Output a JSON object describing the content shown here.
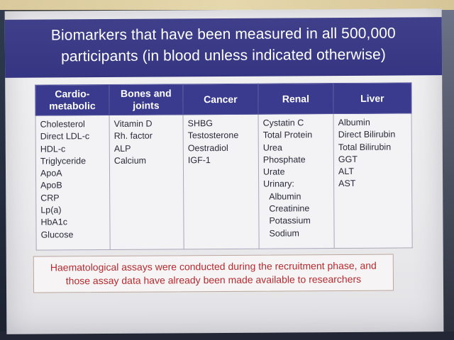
{
  "slide": {
    "title": "Biomarkers that have been measured in all 500,000 participants (in blood unless indicated otherwise)",
    "columns": [
      {
        "header": "Cardio-\nmetabolic",
        "items": [
          "Cholesterol",
          "Direct LDL-c",
          "HDL-c",
          "Triglyceride",
          "ApoA",
          "ApoB",
          "CRP",
          "Lp(a)",
          "HbA1c",
          "Glucose"
        ]
      },
      {
        "header": "Bones and\njoints",
        "items": [
          "Vitamin D",
          "Rh. factor",
          "ALP",
          "Calcium"
        ]
      },
      {
        "header": "Cancer",
        "items": [
          "SHBG",
          "Testosterone",
          "Oestradiol",
          "IGF-1"
        ]
      },
      {
        "header": "Renal",
        "items": [
          "Cystatin C",
          "Total Protein",
          "Urea",
          "Phosphate",
          "Urate",
          "Urinary:",
          "Albumin",
          "Creatinine",
          "Potassium",
          "Sodium"
        ]
      },
      {
        "header": "Liver",
        "items": [
          "Albumin",
          "Direct Bilirubin",
          "Total Bilirubin",
          "GGT",
          "ALT",
          "AST"
        ]
      }
    ],
    "note": "Haematological assays were conducted during the recruitment phase, and those assay data have already been made available to researchers",
    "colors": {
      "title_band": "#3a3a8a",
      "header": "#3a3a8e",
      "note_text": "#b52a2f"
    }
  }
}
